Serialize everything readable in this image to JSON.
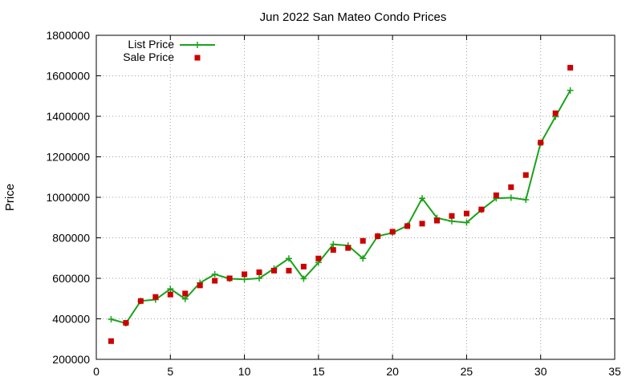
{
  "chart_data": {
    "type": "line",
    "title": "Jun 2022 San Mateo Condo Prices",
    "xlabel": "",
    "ylabel": "Price",
    "xlim": [
      0,
      35
    ],
    "ylim": [
      200000,
      1800000
    ],
    "xticks": [
      0,
      5,
      10,
      15,
      20,
      25,
      30,
      35
    ],
    "yticks": [
      200000,
      400000,
      600000,
      800000,
      1000000,
      1200000,
      1400000,
      1600000,
      1800000
    ],
    "x_tick_labels": [
      "0",
      "5",
      "10",
      "15",
      "20",
      "25",
      "30",
      "35"
    ],
    "y_tick_labels": [
      "200000",
      "400000",
      "600000",
      "800000",
      "1000000",
      "1200000",
      "1400000",
      "1600000",
      "1800000"
    ],
    "grid": true,
    "legend_position": "top-left",
    "series": [
      {
        "name": "List Price",
        "style": "line-plus",
        "color": "#1aa31a",
        "x": [
          1,
          2,
          3,
          4,
          5,
          6,
          7,
          8,
          9,
          10,
          11,
          12,
          13,
          14,
          15,
          16,
          17,
          18,
          19,
          20,
          21,
          22,
          23,
          24,
          25,
          26,
          27,
          28,
          29,
          30,
          31,
          32
        ],
        "y": [
          398000,
          378000,
          488000,
          495000,
          548000,
          498000,
          578000,
          620000,
          598000,
          595000,
          600000,
          648000,
          698000,
          598000,
          678000,
          768000,
          762000,
          698000,
          808000,
          825000,
          860000,
          995000,
          898000,
          882000,
          875000,
          938000,
          995000,
          998000,
          988000,
          1268000,
          1398000,
          1528000
        ]
      },
      {
        "name": "Sale Price",
        "style": "square-marker",
        "color": "#cc0000",
        "x": [
          1,
          2,
          3,
          4,
          5,
          6,
          7,
          8,
          9,
          10,
          11,
          12,
          13,
          14,
          15,
          16,
          17,
          18,
          19,
          20,
          21,
          22,
          23,
          24,
          25,
          26,
          27,
          28,
          29,
          30,
          31,
          32
        ],
        "y": [
          290000,
          380000,
          488000,
          508000,
          520000,
          525000,
          565000,
          588000,
          600000,
          620000,
          630000,
          638000,
          638000,
          658000,
          698000,
          740000,
          750000,
          785000,
          808000,
          830000,
          858000,
          870000,
          885000,
          908000,
          920000,
          940000,
          1010000,
          1050000,
          1110000,
          1270000,
          1415000,
          1640000
        ]
      }
    ]
  }
}
